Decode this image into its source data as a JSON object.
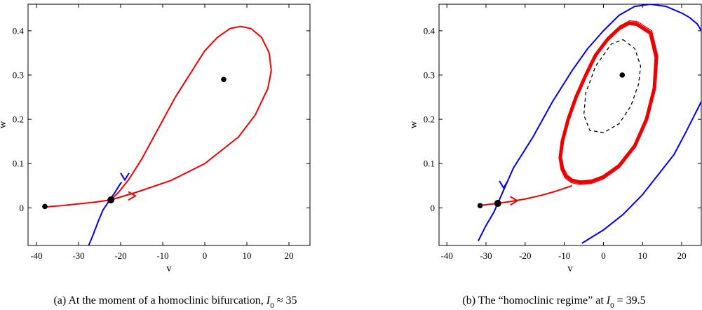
{
  "chart_data": [
    {
      "type": "line",
      "xlabel": "v",
      "ylabel": "w",
      "xlim": [
        -42,
        25
      ],
      "ylim": [
        -0.085,
        0.46
      ],
      "xticks": [
        -40,
        -30,
        -20,
        -10,
        0,
        10,
        20
      ],
      "yticks": [
        0,
        0.1,
        0.2,
        0.3,
        0.4
      ],
      "xtick_labels": [
        "-40",
        "-30",
        "-20",
        "-10",
        "0",
        "10",
        "20"
      ],
      "ytick_labels": [
        "0",
        "0.1",
        "0.2",
        "0.3",
        "0.4"
      ],
      "caption": "(a) At the moment of a homoclinic bifurcation, I0 ≈ 35",
      "colors": {
        "stable_manifold": "#0000ee",
        "unstable_manifold": "#ee0000",
        "points": "#000000"
      },
      "series": [
        {
          "role": "stable-manifold",
          "color": "#0000ee",
          "x": [
            -27.6,
            -26.5,
            -25.3,
            -24.2,
            -23.0,
            -22.3,
            -21.4,
            -20.5,
            -19.8
          ],
          "y": [
            -0.085,
            -0.06,
            -0.03,
            -0.005,
            0.012,
            0.022,
            0.034,
            0.048,
            0.058
          ]
        },
        {
          "role": "homoclinic-orbit",
          "color": "#ee0000",
          "x": [
            -22.3,
            -16,
            -8,
            0,
            8,
            12,
            15,
            15.8,
            15.3,
            13.5,
            11,
            8.5,
            6,
            3,
            0,
            -3,
            -7,
            -11,
            -15,
            -18,
            -20.5,
            -22.3
          ],
          "y": [
            0.018,
            0.036,
            0.062,
            0.1,
            0.16,
            0.21,
            0.27,
            0.31,
            0.35,
            0.385,
            0.405,
            0.41,
            0.405,
            0.385,
            0.355,
            0.31,
            0.25,
            0.18,
            0.11,
            0.065,
            0.035,
            0.018
          ]
        },
        {
          "role": "unstable-manifold-left",
          "color": "#ee0000",
          "x": [
            -38,
            -34,
            -30,
            -26,
            -22.3
          ],
          "y": [
            0.002,
            0.005,
            0.009,
            0.013,
            0.018
          ]
        }
      ],
      "points": [
        {
          "x": -38,
          "y": 0.003,
          "size": "small"
        },
        {
          "x": -22.3,
          "y": 0.018,
          "size": "large"
        },
        {
          "x": 4.5,
          "y": 0.29,
          "size": "small"
        }
      ],
      "arrows": [
        {
          "x": -19,
          "y": 0.063,
          "dir": "down",
          "color": "#0000ee"
        },
        {
          "x": -16.5,
          "y": 0.027,
          "dir": "right",
          "color": "#ee0000"
        }
      ]
    },
    {
      "type": "line",
      "xlabel": "v",
      "ylabel": "w",
      "xlim": [
        -42,
        25
      ],
      "ylim": [
        -0.085,
        0.46
      ],
      "xticks": [
        -40,
        -30,
        -20,
        -10,
        0,
        10,
        20
      ],
      "yticks": [
        0,
        0.1,
        0.2,
        0.3,
        0.4
      ],
      "xtick_labels": [
        "-40",
        "-30",
        "-20",
        "-10",
        "0",
        "10",
        "20"
      ],
      "ytick_labels": [
        "0",
        "0.1",
        "0.2",
        "0.3",
        "0.4"
      ],
      "caption": "(b) The “homoclinic regime” at I0 = 39.5",
      "colors": {
        "stable_manifold": "#0000ee",
        "unstable_manifold": "#ee0000",
        "unstable_cycle": "#000000"
      },
      "series": [
        {
          "role": "stable-manifold",
          "color": "#0000ee",
          "x": [
            -32,
            -30,
            -28,
            -26,
            -23,
            -18,
            -13,
            -8,
            -4,
            0,
            4,
            8,
            12,
            16,
            20,
            22,
            24,
            25
          ],
          "y": [
            -0.075,
            -0.04,
            -0.01,
            0.03,
            0.09,
            0.16,
            0.24,
            0.31,
            0.36,
            0.4,
            0.435,
            0.455,
            0.46,
            0.455,
            0.44,
            0.43,
            0.415,
            0.4
          ]
        },
        {
          "role": "stable-manifold-lower",
          "color": "#0000ee",
          "x": [
            -5.5,
            0,
            5,
            10,
            14,
            18,
            21,
            23,
            25
          ],
          "y": [
            -0.08,
            -0.05,
            -0.015,
            0.03,
            0.075,
            0.12,
            0.17,
            0.205,
            0.24
          ]
        },
        {
          "role": "unstable-manifold",
          "color": "#ee0000",
          "x": [
            -32,
            -29,
            -27,
            -24,
            -20,
            -16,
            -12,
            -8
          ],
          "y": [
            0.005,
            0.008,
            0.01,
            0.014,
            0.02,
            0.028,
            0.038,
            0.05
          ]
        },
        {
          "role": "unstable-cycle",
          "color": "#000000",
          "x": [
            5,
            8,
            9.5,
            9,
            7,
            4,
            0,
            -3.5,
            -5,
            -4.5,
            -2,
            2,
            5
          ],
          "y": [
            0.38,
            0.36,
            0.32,
            0.28,
            0.23,
            0.19,
            0.17,
            0.175,
            0.21,
            0.26,
            0.32,
            0.37,
            0.38
          ]
        }
      ],
      "limit_cycle": {
        "color": "#ee0000",
        "x": [
          8.5,
          12,
          13.5,
          13,
          11,
          8,
          4,
          0,
          -3,
          -6,
          -8,
          -9.5,
          -10.5,
          -11,
          -10.5,
          -9,
          -7,
          -4.5,
          -2,
          1,
          4,
          6.5,
          8.5
        ],
        "y": [
          0.415,
          0.395,
          0.34,
          0.27,
          0.2,
          0.14,
          0.095,
          0.07,
          0.06,
          0.058,
          0.062,
          0.072,
          0.09,
          0.115,
          0.15,
          0.2,
          0.25,
          0.3,
          0.345,
          0.38,
          0.405,
          0.417,
          0.415
        ]
      },
      "points": [
        {
          "x": -31.5,
          "y": 0.005,
          "size": "small"
        },
        {
          "x": -27,
          "y": 0.01,
          "size": "large"
        },
        {
          "x": 4.8,
          "y": 0.3,
          "size": "small"
        }
      ],
      "arrows": [
        {
          "x": -25.5,
          "y": 0.045,
          "dir": "down",
          "color": "#0000ee"
        },
        {
          "x": -22,
          "y": 0.016,
          "dir": "right",
          "color": "#ee0000"
        }
      ]
    }
  ]
}
